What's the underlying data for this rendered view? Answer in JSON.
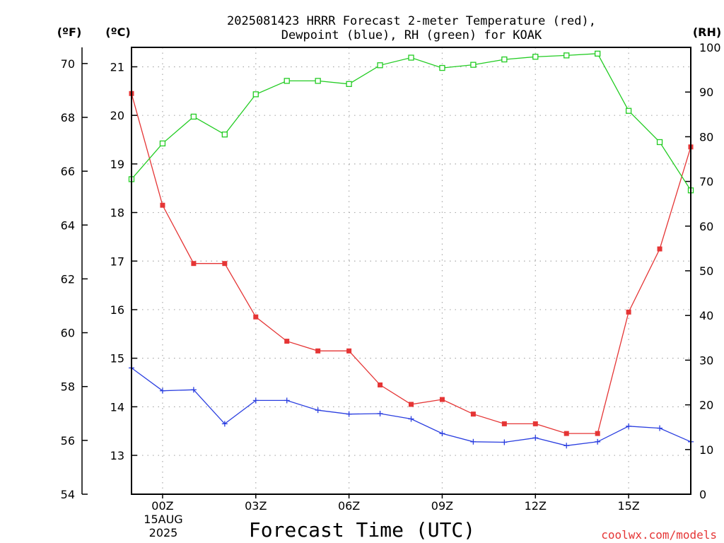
{
  "title_line1": "2025081423 HRRR Forecast 2-meter Temperature (red),",
  "title_line2": "Dewpoint (blue), RH (green) for KOAK",
  "unit_f": "(ºF)",
  "unit_c": "(ºC)",
  "unit_rh": "(RH)",
  "x_axis_label": "Forecast Time (UTC)",
  "credit": "coolwx.com/models",
  "date_label": [
    "15AUG",
    "2025"
  ],
  "colors": {
    "temperature": "#e53535",
    "dewpoint": "#2b3fe0",
    "rh": "#22cc22",
    "grid": "#aaaaaa"
  },
  "chart_data": {
    "type": "line",
    "x_unit": "forecast hour (UTC), 23Z Aug 14 2025 through 17Z Aug 15 2025",
    "x": [
      "23Z",
      "00Z",
      "01Z",
      "02Z",
      "03Z",
      "04Z",
      "05Z",
      "06Z",
      "07Z",
      "08Z",
      "09Z",
      "10Z",
      "11Z",
      "12Z",
      "13Z",
      "14Z",
      "15Z",
      "16Z",
      "17Z"
    ],
    "x_tick_labels": [
      "00Z",
      "03Z",
      "06Z",
      "09Z",
      "12Z",
      "15Z"
    ],
    "y_left_f": {
      "range": [
        54,
        70.6
      ],
      "ticks": [
        54,
        56,
        58,
        60,
        62,
        64,
        66,
        68,
        70
      ]
    },
    "y_left_c": {
      "range": [
        12.2,
        21.4
      ],
      "ticks": [
        13,
        14,
        15,
        16,
        17,
        18,
        19,
        20,
        21
      ]
    },
    "y_right_rh": {
      "range": [
        0,
        100
      ],
      "ticks": [
        0,
        10,
        20,
        30,
        40,
        50,
        60,
        70,
        80,
        90,
        100
      ]
    },
    "grid": true,
    "series": [
      {
        "name": "Temperature (red)",
        "unit": "C",
        "marker": "filled-square",
        "values": [
          20.45,
          18.15,
          16.95,
          16.95,
          15.85,
          15.35,
          15.15,
          15.15,
          14.45,
          14.05,
          14.15,
          13.85,
          13.65,
          13.65,
          13.45,
          13.45,
          15.95,
          17.25,
          19.35
        ]
      },
      {
        "name": "Dewpoint (blue)",
        "unit": "C",
        "marker": "plus",
        "values": [
          14.8,
          14.33,
          14.35,
          13.65,
          14.13,
          14.13,
          13.93,
          13.85,
          13.86,
          13.75,
          13.45,
          13.28,
          13.27,
          13.36,
          13.2,
          13.28,
          13.6,
          13.56,
          13.28
        ]
      },
      {
        "name": "RH (green)",
        "unit": "%",
        "marker": "open-square",
        "values": [
          70.5,
          78.5,
          84.5,
          80.5,
          89.5,
          92.5,
          92.5,
          91.8,
          96.0,
          97.7,
          95.4,
          96.1,
          97.3,
          97.9,
          98.2,
          98.6,
          85.8,
          78.8,
          68.0
        ]
      }
    ]
  }
}
